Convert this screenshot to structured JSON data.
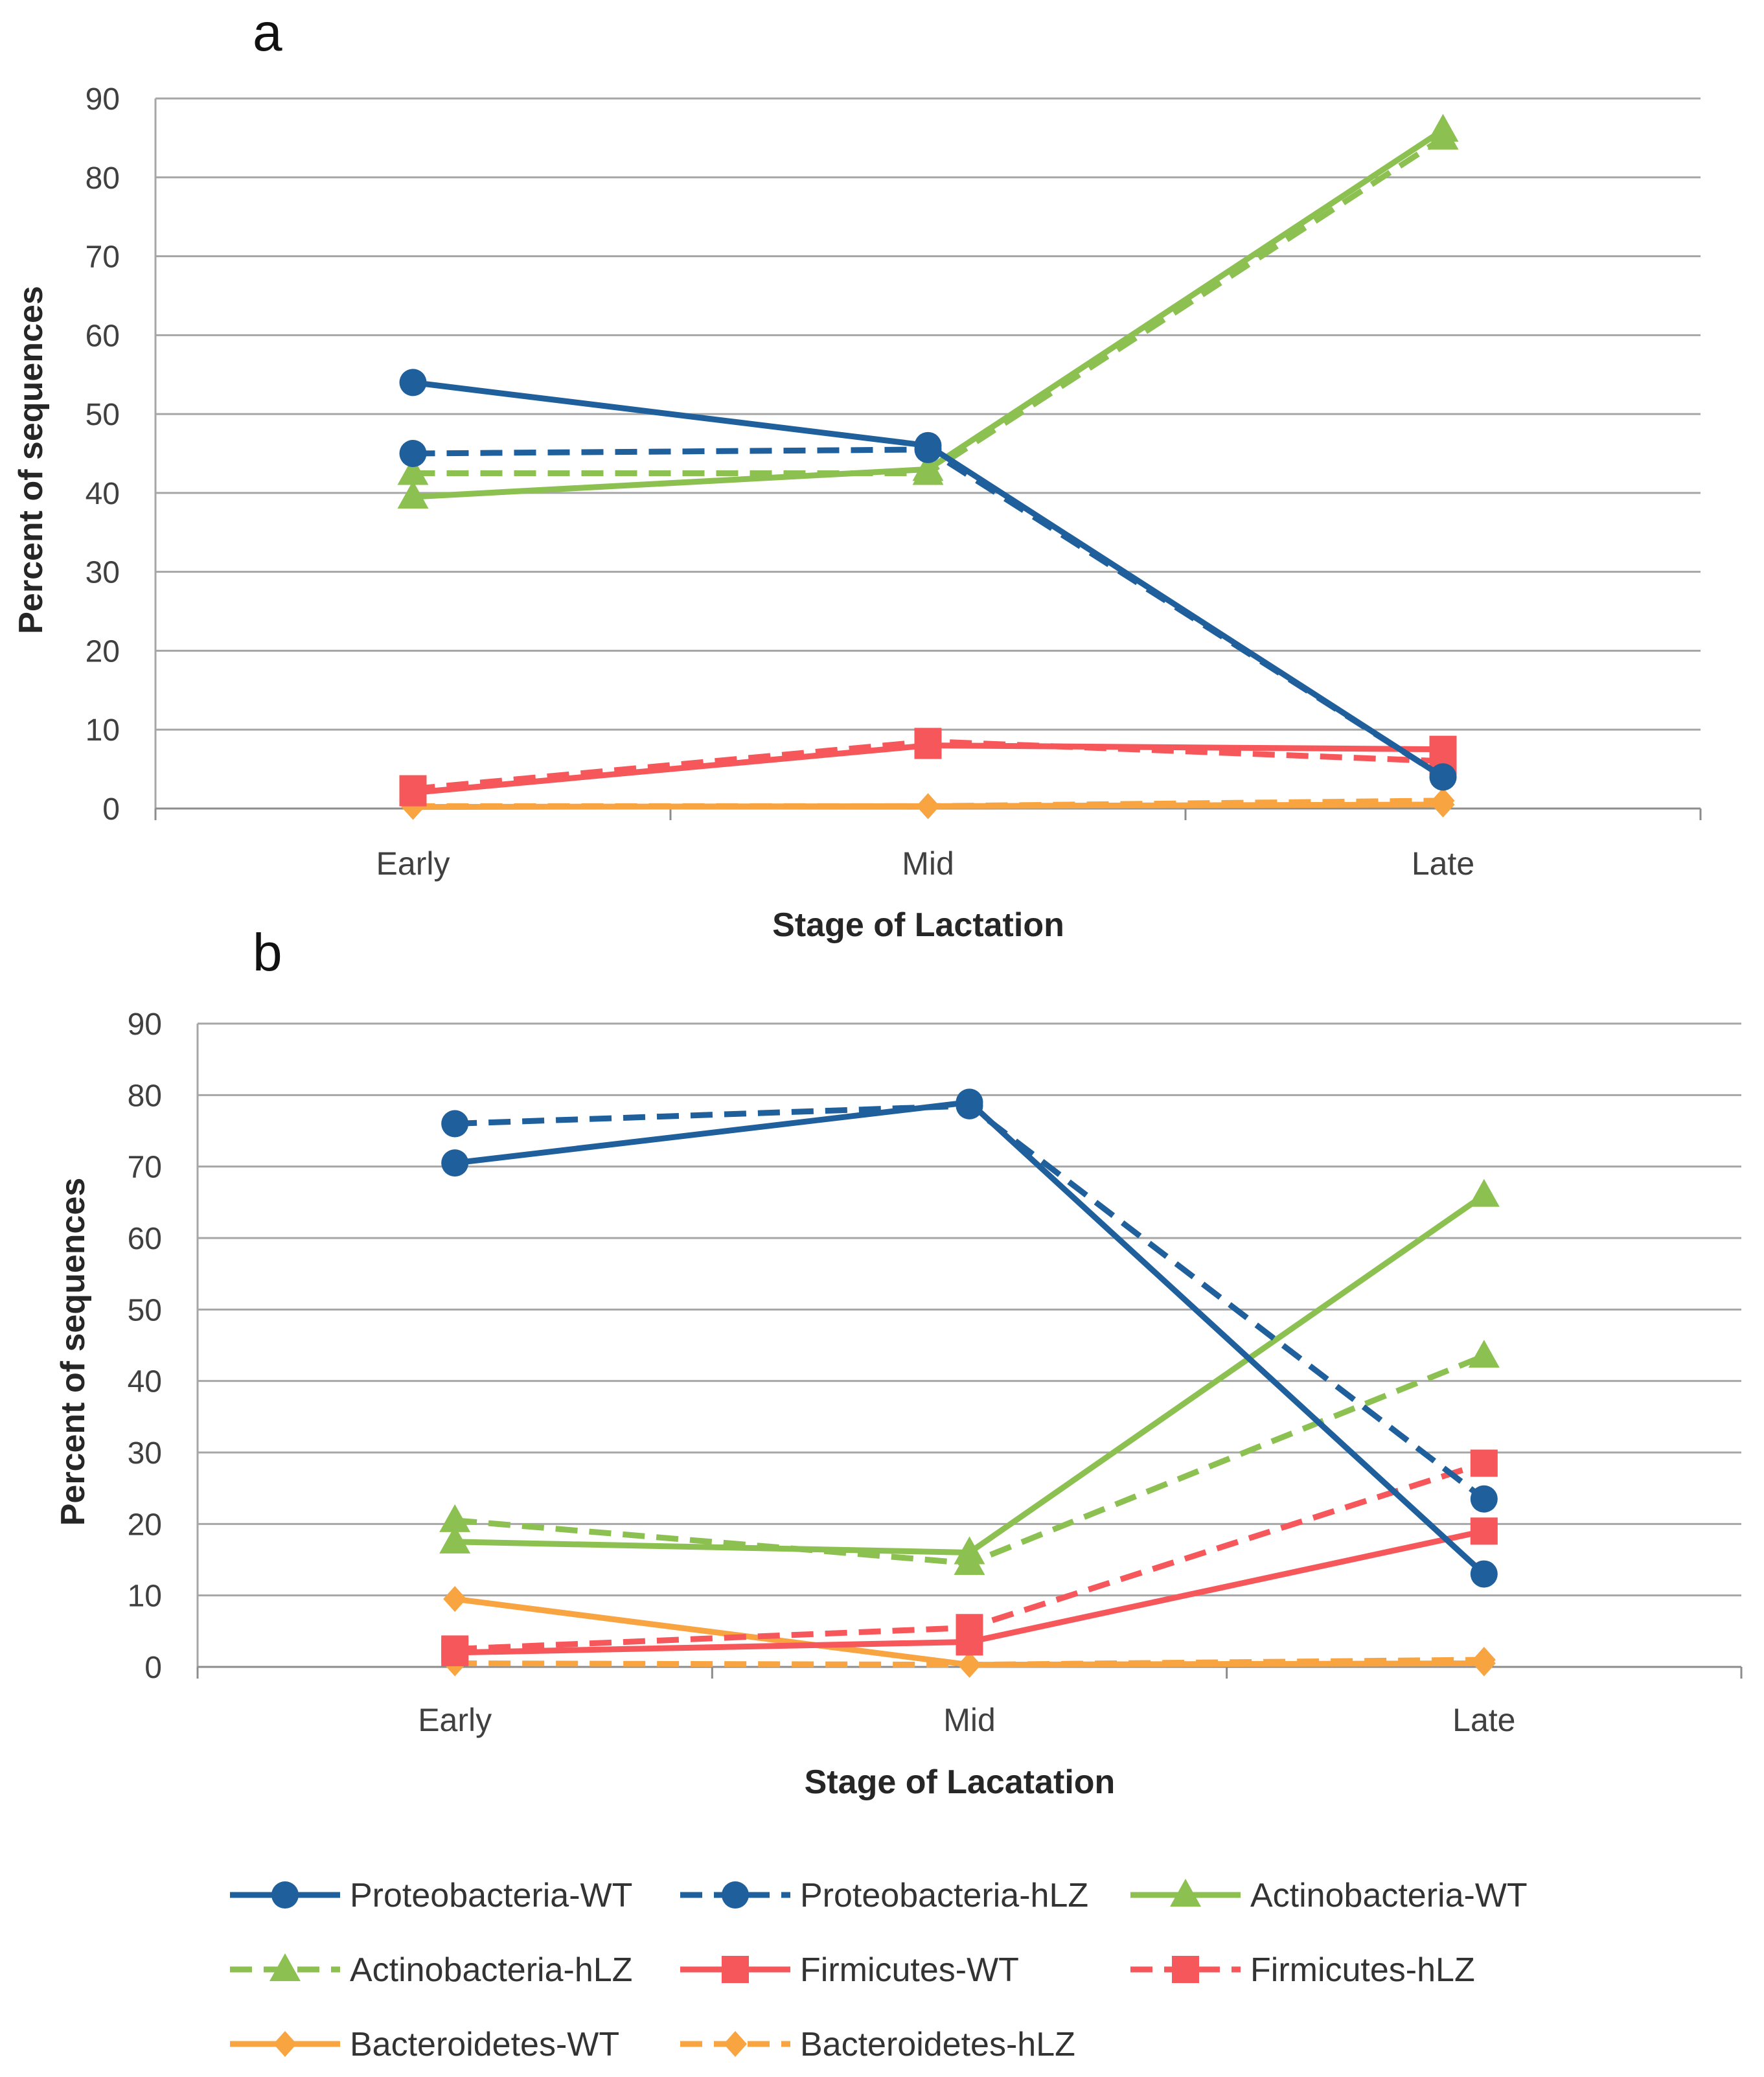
{
  "colors": {
    "proteobacteria": "#1f5f9c",
    "actinobacteria": "#8cc152",
    "firmicutes": "#f5575a",
    "bacteroidetes": "#f7a441"
  },
  "legend": [
    {
      "label": "Proteobacteria-WT",
      "color": "#1f5f9c",
      "dash": false,
      "marker": "circle"
    },
    {
      "label": "Proteobacteria-hLZ",
      "color": "#1f5f9c",
      "dash": true,
      "marker": "circle"
    },
    {
      "label": "Actinobacteria-WT",
      "color": "#8cc152",
      "dash": false,
      "marker": "triangle"
    },
    {
      "label": "Actinobacteria-hLZ",
      "color": "#8cc152",
      "dash": true,
      "marker": "triangle"
    },
    {
      "label": "Firmicutes-WT",
      "color": "#f5575a",
      "dash": false,
      "marker": "square"
    },
    {
      "label": "Firmicutes-hLZ",
      "color": "#f5575a",
      "dash": true,
      "marker": "square"
    },
    {
      "label": "Bacteroidetes-WT",
      "color": "#f7a441",
      "dash": false,
      "marker": "diamond"
    },
    {
      "label": "Bacteroidetes-hLZ",
      "color": "#f7a441",
      "dash": true,
      "marker": "diamond"
    }
  ],
  "chart_data": [
    {
      "type": "line",
      "panel": "a",
      "xlabel": "Stage of Lactation",
      "ylabel": "Percent of sequences",
      "categories": [
        "Early",
        "Mid",
        "Late"
      ],
      "ylim": [
        0,
        90
      ],
      "yticks": [
        0,
        10,
        20,
        30,
        40,
        50,
        60,
        70,
        80,
        90
      ],
      "grid": true,
      "series": [
        {
          "name": "Proteobacteria-WT",
          "values": [
            54,
            46,
            4
          ]
        },
        {
          "name": "Proteobacteria-hLZ",
          "values": [
            45,
            45.5,
            4
          ]
        },
        {
          "name": "Actinobacteria-WT",
          "values": [
            39.5,
            43,
            86
          ]
        },
        {
          "name": "Actinobacteria-hLZ",
          "values": [
            42.5,
            42.5,
            85
          ]
        },
        {
          "name": "Firmicutes-WT",
          "values": [
            2,
            8,
            7.5
          ]
        },
        {
          "name": "Firmicutes-hLZ",
          "values": [
            2.5,
            8.5,
            6
          ]
        },
        {
          "name": "Bacteroidetes-WT",
          "values": [
            0.2,
            0.3,
            0.5
          ]
        },
        {
          "name": "Bacteroidetes-hLZ",
          "values": [
            0.3,
            0.3,
            1
          ]
        }
      ]
    },
    {
      "type": "line",
      "panel": "b",
      "xlabel": "Stage of Lacatation",
      "ylabel": "Percent of sequences",
      "categories": [
        "Early",
        "Mid",
        "Late"
      ],
      "ylim": [
        0,
        90
      ],
      "yticks": [
        0,
        10,
        20,
        30,
        40,
        50,
        60,
        70,
        80,
        90
      ],
      "grid": true,
      "series": [
        {
          "name": "Proteobacteria-WT",
          "values": [
            70.5,
            79,
            13
          ]
        },
        {
          "name": "Proteobacteria-hLZ",
          "values": [
            76,
            78.5,
            23.5
          ]
        },
        {
          "name": "Actinobacteria-WT",
          "values": [
            17.5,
            16,
            66
          ]
        },
        {
          "name": "Actinobacteria-hLZ",
          "values": [
            20.5,
            14.5,
            43.5
          ]
        },
        {
          "name": "Firmicutes-WT",
          "values": [
            2,
            3.5,
            19
          ]
        },
        {
          "name": "Firmicutes-hLZ",
          "values": [
            2.5,
            5.5,
            28.5
          ]
        },
        {
          "name": "Bacteroidetes-WT",
          "values": [
            9.5,
            0.3,
            0.5
          ]
        },
        {
          "name": "Bacteroidetes-hLZ",
          "values": [
            0.5,
            0.3,
            1
          ]
        }
      ]
    }
  ]
}
